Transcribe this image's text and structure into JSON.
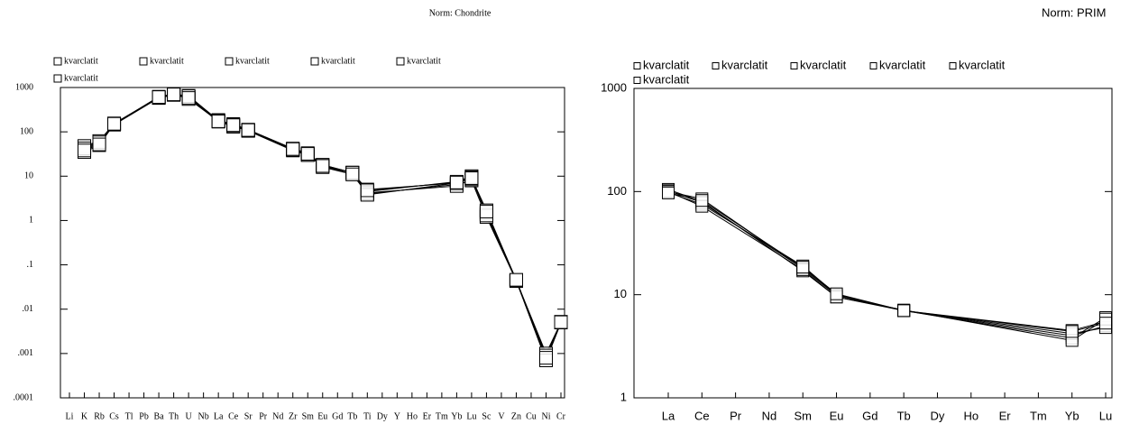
{
  "chart_data": [
    {
      "type": "line",
      "title": "Norm: Chondrite",
      "log_scale": true,
      "legend": "top",
      "marker": "square",
      "categories": [
        "Li",
        "K",
        "Rb",
        "Cs",
        "Tl",
        "Pb",
        "Ba",
        "Th",
        "U",
        "Nb",
        "La",
        "Ce",
        "Sr",
        "Pr",
        "Nd",
        "Zr",
        "Sm",
        "Eu",
        "Gd",
        "Tb",
        "Ti",
        "Dy",
        "Y",
        "Ho",
        "Er",
        "Tm",
        "Yb",
        "Lu",
        "Sc",
        "V",
        "Zn",
        "Cu",
        "Ni",
        "Cr"
      ],
      "ylim": [
        0.0001,
        1000
      ],
      "yticks": [
        1000,
        100,
        10,
        1,
        {
          "value": 0.1,
          "label": ".1"
        },
        {
          "value": 0.01,
          "label": ".01"
        },
        {
          "value": 0.001,
          "label": ".001"
        },
        {
          "value": 0.0001,
          "label": ".0001"
        }
      ],
      "series": [
        {
          "name": "kvarclatit",
          "color": "#000000",
          "values": [
            null,
            45,
            60,
            150,
            null,
            null,
            600,
            700,
            650,
            null,
            180,
            150,
            110,
            null,
            null,
            40,
            32,
            18,
            null,
            12,
            5,
            null,
            null,
            null,
            null,
            null,
            7,
            9,
            1.7,
            null,
            0.045,
            null,
            0.0007,
            0.005
          ]
        },
        {
          "name": "kvarclatit",
          "color": "#000000",
          "values": [
            null,
            40,
            55,
            145,
            null,
            null,
            580,
            680,
            600,
            null,
            170,
            140,
            105,
            null,
            null,
            38,
            30,
            17,
            null,
            12,
            4.5,
            null,
            null,
            null,
            null,
            null,
            7.5,
            10,
            1.4,
            null,
            0.043,
            null,
            0.0008,
            0.005
          ]
        },
        {
          "name": "kvarclatit",
          "color": "#000000",
          "values": [
            null,
            35,
            50,
            150,
            null,
            null,
            620,
            720,
            550,
            null,
            175,
            130,
            108,
            null,
            null,
            40,
            31,
            16,
            null,
            11,
            4,
            null,
            null,
            null,
            null,
            null,
            6.5,
            8,
            1.2,
            null,
            0.044,
            null,
            0.001,
            0.005
          ]
        },
        {
          "name": "kvarclatit",
          "color": "#000000",
          "values": [
            null,
            48,
            62,
            155,
            null,
            null,
            600,
            690,
            620,
            null,
            185,
            145,
            112,
            null,
            null,
            42,
            33,
            18,
            null,
            12,
            4.2,
            null,
            null,
            null,
            null,
            null,
            6,
            8.5,
            1.5,
            null,
            0.045,
            null,
            0.0009,
            0.0052
          ]
        },
        {
          "name": "kvarclatit",
          "color": "#000000",
          "values": [
            null,
            42,
            58,
            148,
            null,
            null,
            590,
            710,
            640,
            null,
            178,
            138,
            106,
            null,
            null,
            39,
            30,
            17,
            null,
            12,
            3.8,
            null,
            null,
            null,
            null,
            null,
            7,
            9.5,
            1.3,
            null,
            0.044,
            null,
            0.0007,
            0.005
          ]
        },
        {
          "name": "kvarclatit",
          "color": "#000000",
          "values": [
            null,
            38,
            52,
            152,
            null,
            null,
            610,
            700,
            580,
            null,
            172,
            142,
            110,
            null,
            null,
            41,
            32,
            17,
            null,
            11,
            4.8,
            null,
            null,
            null,
            null,
            null,
            7.2,
            9,
            1.6,
            null,
            0.046,
            null,
            0.0008,
            0.0051
          ]
        }
      ]
    },
    {
      "type": "line",
      "title": "Norm: PRIM",
      "log_scale": true,
      "legend": "top",
      "marker": "square",
      "categories": [
        "La",
        "Ce",
        "Pr",
        "Nd",
        "Sm",
        "Eu",
        "Gd",
        "Tb",
        "Dy",
        "Ho",
        "Er",
        "Tm",
        "Yb",
        "Lu"
      ],
      "ylim": [
        1,
        1000
      ],
      "yticks": [
        1,
        10,
        100,
        1000
      ],
      "series": [
        {
          "name": "kvarclatit",
          "color": "#000000",
          "values": [
            100,
            85,
            null,
            null,
            18,
            10,
            null,
            7,
            null,
            null,
            null,
            null,
            4.5,
            5.5
          ]
        },
        {
          "name": "kvarclatit",
          "color": "#000000",
          "values": [
            105,
            80,
            null,
            null,
            17,
            9.5,
            null,
            7,
            null,
            null,
            null,
            null,
            4,
            5
          ]
        },
        {
          "name": "kvarclatit",
          "color": "#000000",
          "values": [
            98,
            75,
            null,
            null,
            19,
            10,
            null,
            7,
            null,
            null,
            null,
            null,
            3.8,
            6
          ]
        },
        {
          "name": "kvarclatit",
          "color": "#000000",
          "values": [
            102,
            78,
            null,
            null,
            18,
            9.8,
            null,
            7,
            null,
            null,
            null,
            null,
            4.2,
            4.8
          ]
        },
        {
          "name": "kvarclatit",
          "color": "#000000",
          "values": [
            100,
            72,
            null,
            null,
            17.5,
            9.5,
            null,
            7.1,
            null,
            null,
            null,
            null,
            3.6,
            5.8
          ]
        },
        {
          "name": "kvarclatit",
          "color": "#000000",
          "values": [
            97,
            82,
            null,
            null,
            18.5,
            10.2,
            null,
            7,
            null,
            null,
            null,
            null,
            4.4,
            5.3
          ]
        }
      ]
    }
  ]
}
